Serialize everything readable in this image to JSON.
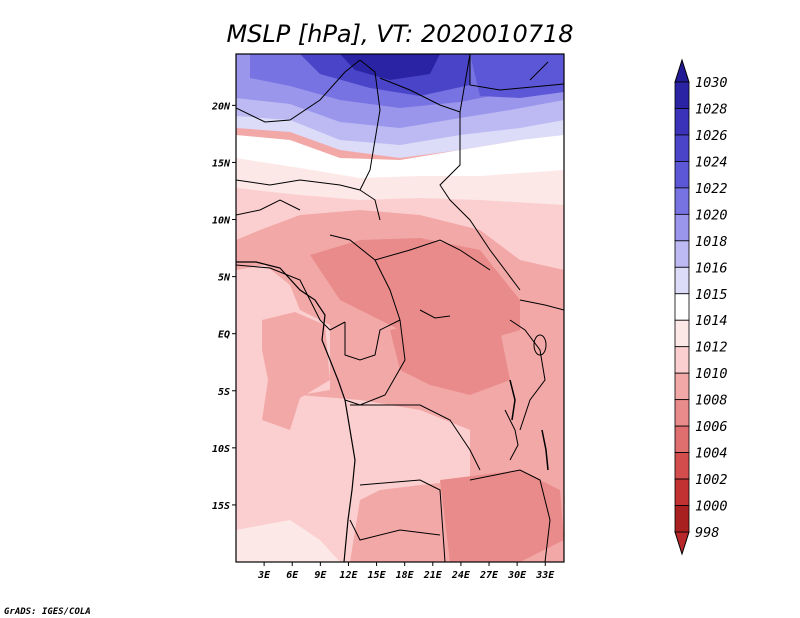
{
  "title": "MSLP [hPa], VT: 2020010718",
  "credit": "GrADS: IGES/COLA",
  "map": {
    "lon_range": [
      0,
      35
    ],
    "lat_range": [
      -20,
      24.5
    ],
    "lon_ticks": [
      {
        "value": 3,
        "label": "3E"
      },
      {
        "value": 6,
        "label": "6E"
      },
      {
        "value": 9,
        "label": "9E"
      },
      {
        "value": 12,
        "label": "12E"
      },
      {
        "value": 15,
        "label": "15E"
      },
      {
        "value": 18,
        "label": "18E"
      },
      {
        "value": 21,
        "label": "21E"
      },
      {
        "value": 24,
        "label": "24E"
      },
      {
        "value": 27,
        "label": "27E"
      },
      {
        "value": 30,
        "label": "30E"
      },
      {
        "value": 33,
        "label": "33E"
      }
    ],
    "lat_ticks": [
      {
        "value": 20,
        "label": "20N"
      },
      {
        "value": 15,
        "label": "15N"
      },
      {
        "value": 10,
        "label": "10N"
      },
      {
        "value": 5,
        "label": "5N"
      },
      {
        "value": 0,
        "label": "EQ"
      },
      {
        "value": -5,
        "label": "5S"
      },
      {
        "value": -10,
        "label": "10S"
      },
      {
        "value": -15,
        "label": "15S"
      }
    ]
  },
  "colorbar": {
    "levels": [
      {
        "label": "1030",
        "color": "#1c168f"
      },
      {
        "label": "1028",
        "color": "#2a23a3"
      },
      {
        "label": "1026",
        "color": "#3a32b8"
      },
      {
        "label": "1024",
        "color": "#4a44c8"
      },
      {
        "label": "1022",
        "color": "#5c57d6"
      },
      {
        "label": "1020",
        "color": "#7873e2"
      },
      {
        "label": "1018",
        "color": "#9a96ec"
      },
      {
        "label": "1016",
        "color": "#bcb9f3"
      },
      {
        "label": "1015",
        "color": "#dcdbf8"
      },
      {
        "label": "1014",
        "color": "#ffffff"
      },
      {
        "label": "1012",
        "color": "#fde8e8"
      },
      {
        "label": "1010",
        "color": "#fbcfcf"
      },
      {
        "label": "1008",
        "color": "#f3a8a8"
      },
      {
        "label": "1006",
        "color": "#e98b8b"
      },
      {
        "label": "1004",
        "color": "#df6e6e"
      },
      {
        "label": "1002",
        "color": "#d44d4d"
      },
      {
        "label": "1000",
        "color": "#c23232"
      },
      {
        "label": "998",
        "color": "#a92020"
      }
    ],
    "top_color": "#231a96",
    "bottom_color": "#b8282a"
  },
  "field_regions": [
    {
      "name": "high-north-core",
      "value": 1030
    },
    {
      "name": "high-north",
      "value": 1024
    },
    {
      "name": "high-north-mid",
      "value": 1020
    },
    {
      "name": "high-north-edge",
      "value": 1016
    },
    {
      "name": "transition-band",
      "value": 1014
    },
    {
      "name": "sahel-band",
      "value": 1012
    },
    {
      "name": "central-low",
      "value": 1008
    },
    {
      "name": "congo-low",
      "value": 1006
    },
    {
      "name": "atlantic",
      "value": 1010
    },
    {
      "name": "southern",
      "value": 1010
    }
  ]
}
